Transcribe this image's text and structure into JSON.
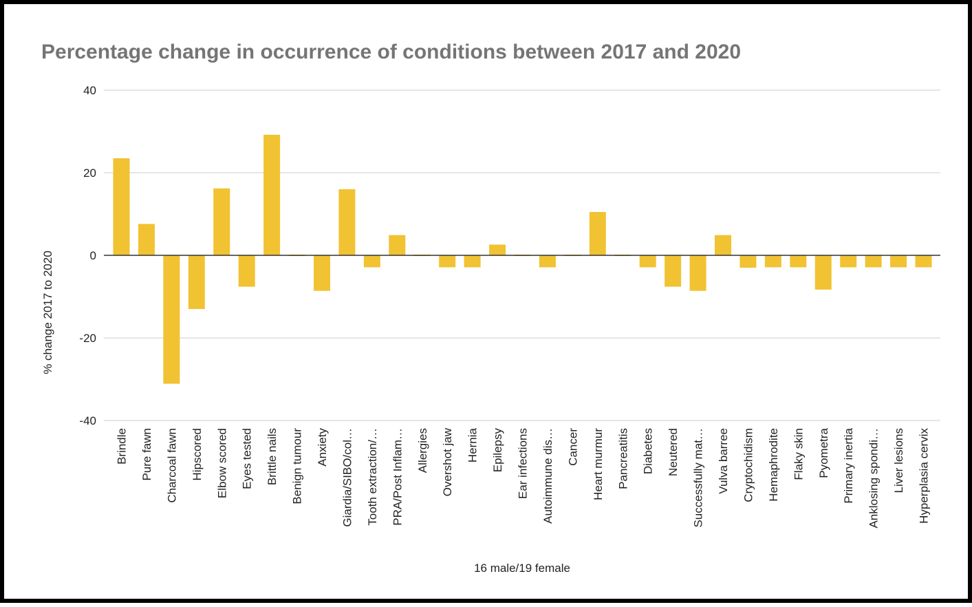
{
  "chart_data": {
    "type": "bar",
    "title": "Percentage change in occurrence of conditions between 2017 and 2020",
    "xlabel": "16 male/19 female",
    "ylabel": "% change 2017 to 2020",
    "ylim": [
      -40,
      40
    ],
    "yticks": [
      40,
      20,
      0,
      -20,
      -40
    ],
    "grid": true,
    "legend": "none",
    "bar_color": "#f1c232",
    "categories": [
      "Brindle",
      "Pure fawn",
      "Charcoal fawn",
      "Hipscored",
      "Elbow scored",
      "Eyes tested",
      "Brittle nails",
      "Benign tumour",
      "Anxiety",
      "Giardia/SIBO/col…",
      "Tooth extraction/…",
      "PRA/Post Inflam…",
      "Allergies",
      "Overshot jaw",
      "Hernia",
      "Epilepsy",
      "Ear infections",
      "Autoimmune dis…",
      "Cancer",
      "Heart murmur",
      "Pancreatitis",
      "Diabetes",
      "Neutered",
      "Successfully mat…",
      "Vulva barree",
      "Cryptochidism",
      "Hemaphrodite",
      "Flaky skin",
      "Pyometra",
      "Primary inertia",
      "Anklosing spondi…",
      "Liver lesions",
      "Hyperplasia cervix"
    ],
    "values": [
      23.5,
      7.6,
      -31.1,
      -13.0,
      16.2,
      -7.6,
      29.2,
      0,
      -8.6,
      16.0,
      -2.9,
      4.9,
      0,
      -2.9,
      -2.9,
      2.6,
      0,
      -2.9,
      0,
      10.5,
      0,
      -2.9,
      -7.6,
      -8.6,
      4.9,
      -3.0,
      -2.9,
      -2.9,
      -8.3,
      -2.9,
      -2.9,
      -2.9,
      -2.9
    ]
  }
}
